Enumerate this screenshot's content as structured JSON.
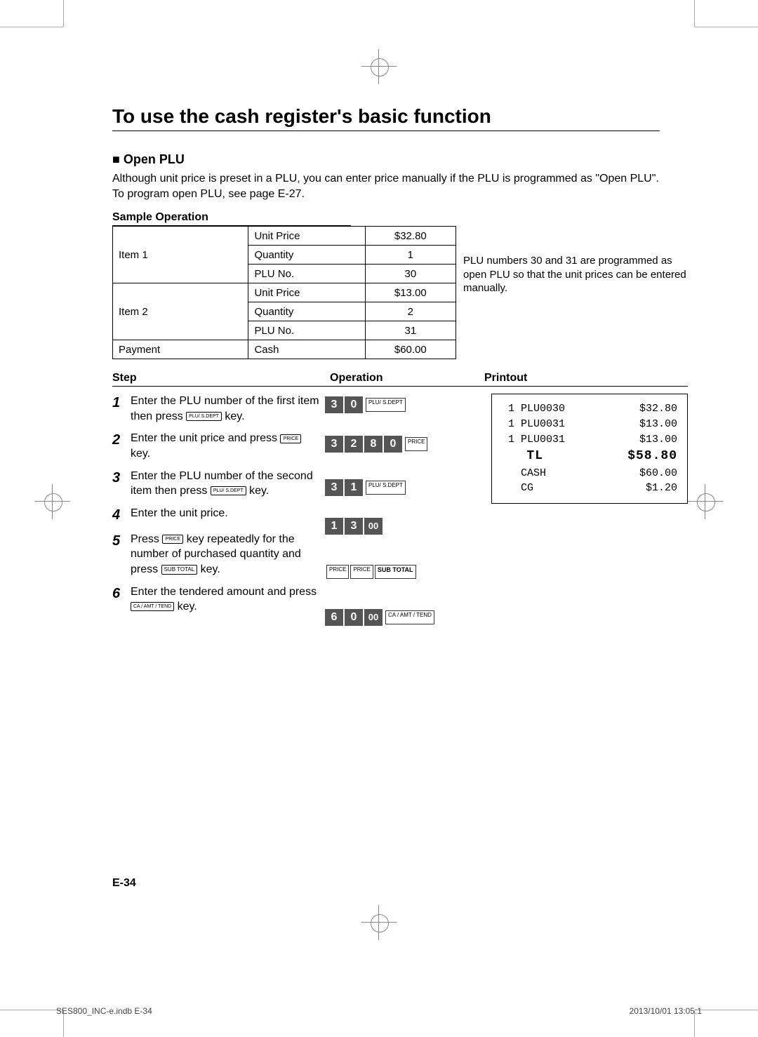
{
  "title": "To use the cash register's basic function",
  "section_marker": "■",
  "section_title": "Open PLU",
  "intro": "Although unit price is preset in a PLU, you can enter price manually if the PLU is programmed as \"Open PLU\". To program open PLU, see page E-27.",
  "sample_operation_label": "Sample Operation",
  "sample_table": {
    "rows": [
      {
        "label": "Item 1",
        "attr": "Unit Price",
        "val": "$32.80"
      },
      {
        "label": "",
        "attr": "Quantity",
        "val": "1"
      },
      {
        "label": "",
        "attr": "PLU No.",
        "val": "30"
      },
      {
        "label": "Item 2",
        "attr": "Unit Price",
        "val": "$13.00"
      },
      {
        "label": "",
        "attr": "Quantity",
        "val": "2"
      },
      {
        "label": "",
        "attr": "PLU No.",
        "val": "31"
      },
      {
        "label": "Payment",
        "attr": "Cash",
        "val": "$60.00"
      }
    ]
  },
  "sample_note": "PLU numbers 30 and 31 are programmed as open PLU so that the unit prices can be entered manually.",
  "headers": {
    "step": "Step",
    "op": "Operation",
    "prn": "Printout"
  },
  "steps": [
    {
      "num": "1",
      "text_pre": "Enter the PLU number of the first item then press ",
      "key": "PLU/\nS.DEPT",
      "text_post": " key."
    },
    {
      "num": "2",
      "text_pre": "Enter the unit price and press ",
      "key": "PRICE",
      "text_post": " key."
    },
    {
      "num": "3",
      "text_pre": "Enter the PLU number of the second item then press ",
      "key": "PLU/\nS.DEPT",
      "text_post": " key."
    },
    {
      "num": "4",
      "text_pre": "Enter the unit price.",
      "key": "",
      "text_post": ""
    },
    {
      "num": "5",
      "text_pre": "Press ",
      "key": "PRICE",
      "text_mid": " key repeatedly for the number of purchased quantity and press ",
      "key2": "SUB\nTOTAL",
      "text_post": " key."
    },
    {
      "num": "6",
      "text_pre": "Enter the tendered amount and press ",
      "key": "CA / AMT\n/ TEND",
      "text_post": " key."
    }
  ],
  "operations": [
    {
      "type": "keys",
      "keys": [
        "3",
        "0"
      ],
      "fn": "PLU/\nS.DEPT"
    },
    {
      "type": "keys",
      "keys": [
        "3",
        "2",
        "8",
        "0"
      ],
      "fn": "PRICE"
    },
    {
      "type": "keys",
      "keys": [
        "3",
        "1"
      ],
      "fn": "PLU/\nS.DEPT"
    },
    {
      "type": "keys",
      "keys": [
        "1",
        "3",
        "00"
      ],
      "fn": ""
    },
    {
      "type": "fnrow",
      "fns": [
        "PRICE",
        "PRICE",
        "SUB\nTOTAL"
      ]
    },
    {
      "type": "keys",
      "keys": [
        "6",
        "0",
        "00"
      ],
      "fn": "CA / AMT\n/ TEND"
    }
  ],
  "printout": [
    {
      "l": " 1 PLU0030",
      "r": "$32.80"
    },
    {
      "l": " 1 PLU0031",
      "r": "$13.00"
    },
    {
      "l": " 1 PLU0031",
      "r": "$13.00"
    },
    {
      "l": "   TL",
      "r": "$58.80",
      "big": true
    },
    {
      "l": "   CASH",
      "r": "$60.00"
    },
    {
      "l": "   CG",
      "r": "$1.20"
    }
  ],
  "page_num": "E-34",
  "footer_left": "SES800_INC-e.indb   E-34",
  "footer_right": "2013/10/01   13:05:1"
}
